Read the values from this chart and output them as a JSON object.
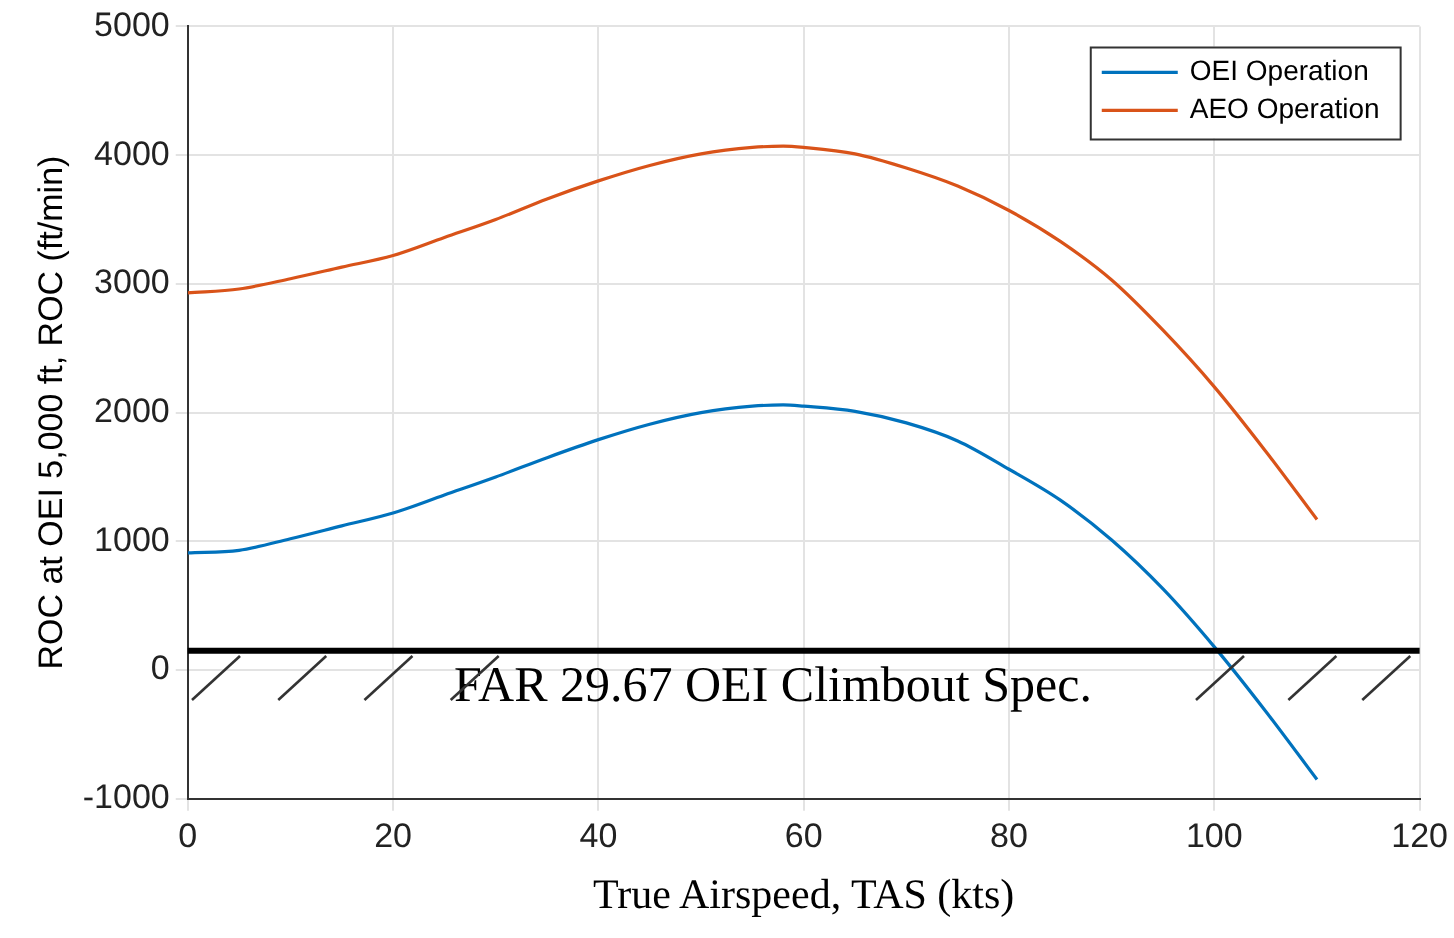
{
  "chart_data": {
    "type": "line",
    "xlabel": "True Airspeed, TAS (kts)",
    "ylabel": "ROC at OEI 5,000 ft, ROC (ft/min)",
    "x": [
      0,
      5,
      10,
      15,
      20,
      25,
      30,
      35,
      40,
      45,
      50,
      55,
      58,
      60,
      65,
      70,
      75,
      80,
      85,
      90,
      95,
      100,
      105,
      110
    ],
    "series": [
      {
        "name": "OEI Operation",
        "color": "#0072bd",
        "values": [
          910,
          930,
          1020,
          1120,
          1220,
          1360,
          1500,
          1650,
          1790,
          1910,
          2000,
          2050,
          2060,
          2050,
          2010,
          1920,
          1780,
          1560,
          1320,
          1010,
          630,
          180,
          -320,
          -850
        ]
      },
      {
        "name": "AEO Operation",
        "color": "#d95319",
        "values": [
          2930,
          2960,
          3040,
          3130,
          3220,
          3360,
          3500,
          3660,
          3800,
          3920,
          4010,
          4060,
          4070,
          4060,
          4010,
          3900,
          3760,
          3570,
          3330,
          3030,
          2640,
          2200,
          1700,
          1170
        ]
      }
    ],
    "xlim": [
      0,
      120
    ],
    "xticks": [
      0,
      20,
      40,
      60,
      80,
      100,
      120
    ],
    "ylim": [
      -1000,
      5000
    ],
    "yticks": [
      -1000,
      0,
      1000,
      2000,
      3000,
      4000,
      5000
    ],
    "ref_lines": [
      {
        "axis": "y",
        "value": 150,
        "label": "FAR 29.67 OEI Climbout Spec.",
        "color": "#000000"
      }
    ],
    "grid": true,
    "legend": "top right",
    "marker": "none",
    "line_style": "solid"
  }
}
